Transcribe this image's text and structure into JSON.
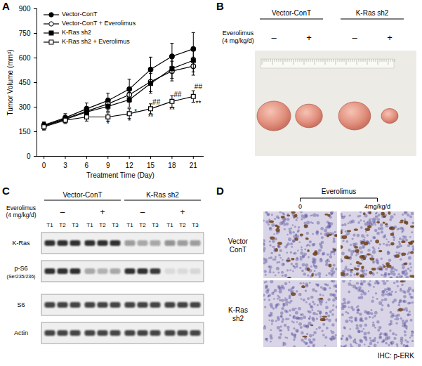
{
  "panel_labels": [
    "A",
    "B",
    "C",
    "D"
  ],
  "chart_data": {
    "type": "line",
    "xlabel": "Treatment Time (Day)",
    "ylabel": "Tumor Volume (mm³)",
    "x": [
      0,
      3,
      6,
      9,
      12,
      15,
      18,
      21
    ],
    "xlim": [
      -1,
      22.5
    ],
    "xticks": [
      0,
      3,
      6,
      9,
      12,
      15,
      18,
      21
    ],
    "ylim": [
      0,
      900
    ],
    "yticks": [
      0,
      150,
      300,
      450,
      600,
      750,
      900
    ],
    "legend": "top-left",
    "series": [
      {
        "name": "Vector-ConT",
        "color": "#000000",
        "marker": "circle",
        "values": [
          190,
          235,
          290,
          340,
          410,
          530,
          610,
          655
        ],
        "errors": [
          20,
          25,
          35,
          45,
          60,
          75,
          80,
          100
        ]
      },
      {
        "name": "Vector-ConT + Everolimus",
        "color": "#000000",
        "marker": "circle-open",
        "values": [
          185,
          230,
          275,
          320,
          375,
          455,
          520,
          550
        ],
        "errors": [
          20,
          20,
          30,
          35,
          45,
          60,
          60,
          55
        ]
      },
      {
        "name": "K-Ras sh2",
        "color": "#000000",
        "marker": "square",
        "values": [
          185,
          225,
          270,
          305,
          345,
          445,
          535,
          585
        ],
        "errors": [
          20,
          20,
          25,
          30,
          45,
          60,
          60,
          70
        ]
      },
      {
        "name": "K-Ras sh2 + Everolimus",
        "color": "#000000",
        "marker": "square-open",
        "values": [
          180,
          220,
          240,
          240,
          260,
          290,
          335,
          365
        ],
        "errors": [
          20,
          20,
          25,
          25,
          30,
          30,
          35,
          35
        ]
      }
    ],
    "annotations": [
      {
        "x": 9,
        "y": 195,
        "text": "*"
      },
      {
        "x": 12,
        "y": 215,
        "text": "*"
      },
      {
        "x": 12.9,
        "y": 268,
        "text": "*"
      },
      {
        "x": 15,
        "y": 240,
        "text": "**"
      },
      {
        "x": 15.8,
        "y": 330,
        "text": "##"
      },
      {
        "x": 18,
        "y": 280,
        "text": "**"
      },
      {
        "x": 18.8,
        "y": 375,
        "text": "##"
      },
      {
        "x": 21.7,
        "y": 320,
        "text": "**"
      },
      {
        "x": 21.7,
        "y": 425,
        "text": "##"
      }
    ]
  },
  "panel_B": {
    "groups": [
      "Vector-ConT",
      "K-Ras sh2"
    ],
    "treatment_label": "Everolimus",
    "treatment_dose": "(4 mg/kg/d)",
    "treatment": [
      "–",
      "+",
      "–",
      "+"
    ],
    "tumor_size": [
      1,
      0.8,
      0.95,
      0.5
    ]
  },
  "panel_C": {
    "groups": [
      "Vector-ConT",
      "K-Ras sh2"
    ],
    "treatment_label": "Everolimus",
    "treatment_dose": "(4 mg/kg/d)",
    "treatment": [
      "–",
      "+",
      "–",
      "+"
    ],
    "lanes": [
      "T1",
      "T2",
      "T3",
      "T1",
      "T2",
      "T3",
      "T1",
      "T2",
      "T3",
      "T1",
      "T2",
      "T3"
    ],
    "rows": [
      {
        "name": "K-Ras",
        "intensity": [
          1,
          1,
          1,
          1,
          1,
          1,
          0.45,
          0.35,
          0.4,
          0.5,
          0.45,
          0.45
        ]
      },
      {
        "name": "p-S6",
        "sublabel": "(Ser235/236)",
        "intensity": [
          1,
          1,
          1,
          0.35,
          0.3,
          0.35,
          1,
          1,
          0.95,
          0.1,
          0.1,
          0.12
        ]
      },
      {
        "name": "S6",
        "intensity": [
          0.9,
          0.9,
          0.9,
          0.9,
          0.9,
          0.9,
          0.9,
          0.9,
          0.9,
          0.9,
          0.9,
          0.9
        ]
      },
      {
        "name": "Actin",
        "intensity": [
          0.9,
          0.9,
          0.9,
          0.9,
          0.9,
          0.9,
          0.9,
          0.9,
          0.9,
          0.9,
          0.9,
          0.9
        ]
      }
    ]
  },
  "panel_D": {
    "header": "Everolimus",
    "columns": [
      "0",
      "4mg/kg/d"
    ],
    "rows": [
      "Vector ConT",
      "K-Ras sh2"
    ],
    "caption": "IHC: p-ERK",
    "staining": [
      [
        0.5,
        1
      ],
      [
        0.12,
        0.04
      ]
    ]
  }
}
